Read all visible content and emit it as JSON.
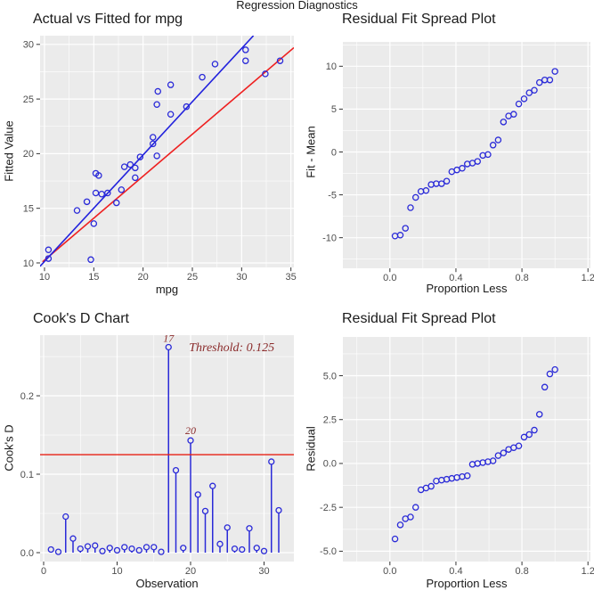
{
  "main_title": "Regression Diagnostics",
  "colors": {
    "panel_bg": "#ebebeb",
    "grid": "#ffffff",
    "axis_text": "#4d4d4d",
    "tick_mark": "#333333",
    "title_text": "#1a1a1a",
    "point_blue": "#2a2ad8",
    "line_blue": "#2222dd",
    "line_red": "#ee2020",
    "threshold_red": "#e82015",
    "annotation_red": "#8b2c2c"
  },
  "chart_data": [
    {
      "type": "scatter",
      "title": "Actual vs Fitted for mpg",
      "xlabel": "mpg",
      "ylabel": "Fitted Value",
      "xlim": [
        9.55,
        35.3
      ],
      "ylim": [
        9.59,
        30.8
      ],
      "xticks": {
        "v": [
          10,
          15,
          20,
          25,
          30,
          35
        ],
        "labels": [
          "10",
          "15",
          "20",
          "25",
          "30",
          "35"
        ]
      },
      "yticks": {
        "v": [
          10,
          15,
          20,
          25,
          30
        ],
        "labels": [
          "10",
          "15",
          "20",
          "25",
          "30"
        ]
      },
      "lines": [
        {
          "x1": 9.8,
          "y1": 10.1,
          "x2": 35.3,
          "y2": 29.7,
          "color": "line_red",
          "name": "identity-line"
        },
        {
          "x1": 9.55,
          "y1": 9.7,
          "x2": 31.2,
          "y2": 30.8,
          "color": "line_blue",
          "name": "regression-line"
        }
      ],
      "points": [
        [
          10.4,
          10.4
        ],
        [
          10.4,
          11.2
        ],
        [
          13.3,
          14.8
        ],
        [
          14.3,
          15.6
        ],
        [
          14.7,
          10.3
        ],
        [
          15.0,
          13.6
        ],
        [
          15.2,
          16.4
        ],
        [
          15.2,
          18.2
        ],
        [
          15.5,
          18.0
        ],
        [
          15.8,
          16.3
        ],
        [
          16.4,
          16.4
        ],
        [
          17.3,
          15.5
        ],
        [
          17.8,
          16.7
        ],
        [
          18.1,
          18.8
        ],
        [
          18.7,
          19.0
        ],
        [
          19.2,
          17.8
        ],
        [
          19.2,
          18.7
        ],
        [
          19.7,
          19.7
        ],
        [
          21.0,
          20.9
        ],
        [
          21.0,
          21.5
        ],
        [
          21.4,
          19.8
        ],
        [
          21.4,
          24.5
        ],
        [
          21.5,
          25.7
        ],
        [
          22.8,
          23.6
        ],
        [
          22.8,
          26.3
        ],
        [
          24.4,
          24.3
        ],
        [
          26.0,
          27.0
        ],
        [
          27.3,
          28.2
        ],
        [
          30.4,
          28.5
        ],
        [
          30.4,
          29.5
        ],
        [
          32.4,
          27.3
        ],
        [
          33.9,
          28.5
        ]
      ]
    },
    {
      "type": "scatter",
      "title": "Residual Fit Spread Plot",
      "xlabel": "Proportion Less",
      "ylabel": "Fit - Mean",
      "xlim": [
        -0.285,
        1.215
      ],
      "ylim": [
        -13.57,
        12.84
      ],
      "xticks": {
        "v": [
          0.0,
          0.4,
          0.8,
          1.2
        ],
        "labels": [
          "0.0",
          "0.4",
          "0.8",
          "1.2"
        ]
      },
      "yticks": {
        "v": [
          -10,
          -5,
          0,
          5,
          10
        ],
        "labels": [
          "-10",
          "-5",
          "0",
          "5",
          "10"
        ]
      },
      "x": [
        0.031,
        0.063,
        0.094,
        0.125,
        0.156,
        0.188,
        0.219,
        0.25,
        0.281,
        0.313,
        0.344,
        0.375,
        0.406,
        0.438,
        0.469,
        0.5,
        0.531,
        0.563,
        0.594,
        0.625,
        0.656,
        0.688,
        0.719,
        0.75,
        0.781,
        0.813,
        0.844,
        0.875,
        0.906,
        0.938,
        0.969,
        1.0
      ],
      "y": [
        -9.8,
        -9.7,
        -8.9,
        -6.5,
        -5.3,
        -4.6,
        -4.5,
        -3.8,
        -3.7,
        -3.7,
        -3.4,
        -2.3,
        -2.1,
        -1.9,
        -1.4,
        -1.3,
        -1.1,
        -0.4,
        -0.3,
        0.8,
        1.4,
        3.5,
        4.2,
        4.4,
        5.6,
        6.2,
        6.9,
        7.2,
        8.1,
        8.4,
        8.4,
        9.4
      ]
    },
    {
      "type": "lollipop",
      "title": "Cook's D Chart",
      "xlabel": "Observation",
      "ylabel": "Cook's D",
      "xlim": [
        -0.485,
        34.06
      ],
      "ylim": [
        -0.01136,
        0.2773
      ],
      "xticks": {
        "v": [
          0,
          10,
          20,
          30
        ],
        "labels": [
          "0",
          "10",
          "20",
          "30"
        ]
      },
      "yticks": {
        "v": [
          0.0,
          0.1,
          0.2
        ],
        "labels": [
          "0.0",
          "0.1",
          "0.2"
        ]
      },
      "x": [
        1,
        2,
        3,
        4,
        5,
        6,
        7,
        8,
        9,
        10,
        11,
        12,
        13,
        14,
        15,
        16,
        17,
        18,
        19,
        20,
        21,
        22,
        23,
        24,
        25,
        26,
        27,
        28,
        29,
        30,
        31,
        32
      ],
      "y": [
        0.004,
        0.001,
        0.046,
        0.018,
        0.005,
        0.008,
        0.009,
        0.002,
        0.006,
        0.003,
        0.007,
        0.005,
        0.003,
        0.007,
        0.007,
        0.001,
        0.262,
        0.105,
        0.006,
        0.143,
        0.074,
        0.053,
        0.085,
        0.011,
        0.032,
        0.005,
        0.004,
        0.031,
        0.006,
        0.002,
        0.116,
        0.054
      ],
      "baseline": 0.0,
      "threshold": {
        "value": 0.125
      },
      "annotations": [
        {
          "x": 17,
          "y": 0.2688,
          "text": "17",
          "size": 12
        },
        {
          "x": 20,
          "y": 0.1511,
          "text": "20",
          "size": 12
        },
        {
          "x": 25.6,
          "y": 0.2568,
          "text": "Threshold: 0.125",
          "size": 14
        }
      ]
    },
    {
      "type": "scatter",
      "title": "Residual Fit Spread Plot",
      "xlabel": "Proportion Less",
      "ylabel": "Residual",
      "xlim": [
        -0.285,
        1.215
      ],
      "ylim": [
        -5.59,
        7.21
      ],
      "xticks": {
        "v": [
          0.0,
          0.4,
          0.8,
          1.2
        ],
        "labels": [
          "0.0",
          "0.4",
          "0.8",
          "1.2"
        ]
      },
      "yticks": {
        "v": [
          -5.0,
          -2.5,
          0.0,
          2.5,
          5.0
        ],
        "labels": [
          "-5.0",
          "-2.5",
          "0.0",
          "2.5",
          "5.0"
        ]
      },
      "x": [
        0.031,
        0.063,
        0.094,
        0.125,
        0.156,
        0.188,
        0.219,
        0.25,
        0.281,
        0.313,
        0.344,
        0.375,
        0.406,
        0.438,
        0.469,
        0.5,
        0.531,
        0.563,
        0.594,
        0.625,
        0.656,
        0.688,
        0.719,
        0.75,
        0.781,
        0.813,
        0.844,
        0.875,
        0.906,
        0.938,
        0.969,
        1.0
      ],
      "y": [
        -4.3,
        -3.5,
        -3.15,
        -3.05,
        -2.5,
        -1.5,
        -1.4,
        -1.3,
        -1.0,
        -0.95,
        -0.9,
        -0.85,
        -0.8,
        -0.75,
        -0.7,
        -0.05,
        0.0,
        0.05,
        0.1,
        0.15,
        0.45,
        0.6,
        0.8,
        0.9,
        1.0,
        1.5,
        1.65,
        1.9,
        2.8,
        4.35,
        5.1,
        5.35
      ]
    }
  ]
}
